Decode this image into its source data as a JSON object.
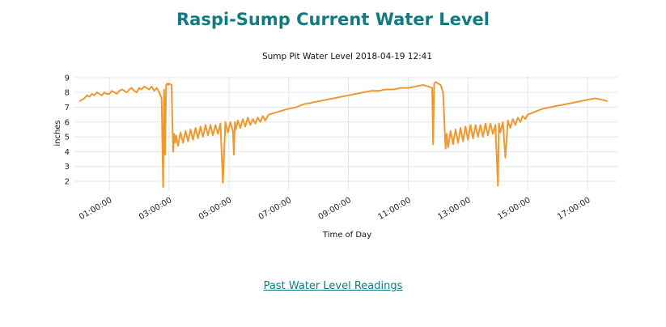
{
  "page": {
    "title": "Raspi-Sump Current Water Level",
    "past_link": "Past Water Level Readings"
  },
  "colors": {
    "line": "#f0982e",
    "title": "#137a7f",
    "grid": "#e6e6e6"
  },
  "chart_data": {
    "type": "line",
    "title": "Sump Pit Water Level 2018-04-19 12:41",
    "xlabel": "Time of Day",
    "ylabel": "inches",
    "xlim": [
      "23:50",
      "18:00"
    ],
    "ylim": [
      1.4,
      9.1
    ],
    "yticks": [
      2,
      3,
      4,
      5,
      6,
      7,
      8,
      9
    ],
    "xticks": [
      "01:00:00",
      "03:00:00",
      "05:00:00",
      "07:00:00",
      "09:00:00",
      "11:00:00",
      "13:00:00",
      "15:00:00",
      "17:00:00"
    ],
    "grid": true,
    "series": [
      {
        "x": [
          "00:00",
          "00:05",
          "00:10",
          "00:15",
          "00:20",
          "00:25",
          "00:30",
          "00:35",
          "00:40",
          "00:45",
          "00:50",
          "00:55",
          "01:00",
          "01:05",
          "01:10",
          "01:15",
          "01:20",
          "01:25",
          "01:30",
          "01:35",
          "01:40",
          "01:45",
          "01:50",
          "01:55",
          "02:00",
          "02:05",
          "02:10",
          "02:15",
          "02:20",
          "02:25",
          "02:30",
          "02:35",
          "02:40",
          "02:45",
          "02:48",
          "02:50",
          "02:52",
          "02:54",
          "02:56",
          "02:58",
          "03:00",
          "03:05",
          "03:08",
          "03:10",
          "03:12",
          "03:14",
          "03:18",
          "03:23",
          "03:28",
          "03:33",
          "03:38",
          "03:43",
          "03:48",
          "03:53",
          "03:58",
          "04:03",
          "04:08",
          "04:13",
          "04:18",
          "04:23",
          "04:28",
          "04:33",
          "04:38",
          "04:43",
          "04:48",
          "04:53",
          "04:58",
          "05:03",
          "05:08",
          "05:10",
          "05:12",
          "05:14",
          "05:18",
          "05:23",
          "05:28",
          "05:33",
          "05:38",
          "05:43",
          "05:48",
          "05:53",
          "05:58",
          "06:03",
          "06:08",
          "06:13",
          "06:20",
          "06:30",
          "06:40",
          "06:50",
          "07:00",
          "07:15",
          "07:30",
          "07:45",
          "08:00",
          "08:15",
          "08:30",
          "08:45",
          "09:00",
          "09:15",
          "09:30",
          "09:45",
          "10:00",
          "10:15",
          "10:30",
          "10:45",
          "11:00",
          "11:15",
          "11:30",
          "11:40",
          "11:48",
          "11:50",
          "11:52",
          "11:55",
          "12:00",
          "12:05",
          "12:10",
          "12:15",
          "12:17",
          "12:20",
          "12:25",
          "12:30",
          "12:35",
          "12:40",
          "12:45",
          "12:50",
          "12:55",
          "13:00",
          "13:05",
          "13:10",
          "13:15",
          "13:20",
          "13:25",
          "13:30",
          "13:35",
          "13:40",
          "13:45",
          "13:50",
          "13:55",
          "14:00",
          "14:02",
          "14:05",
          "14:10",
          "14:15",
          "14:20",
          "14:25",
          "14:30",
          "14:35",
          "14:40",
          "14:45",
          "14:50",
          "14:55",
          "15:00",
          "15:15",
          "15:30",
          "15:45",
          "16:00",
          "16:15",
          "16:30",
          "16:45",
          "17:00",
          "17:15",
          "17:30",
          "17:40"
        ],
        "values": [
          7.4,
          7.5,
          7.6,
          7.8,
          7.7,
          7.9,
          7.8,
          8.0,
          7.9,
          7.8,
          8.0,
          7.9,
          7.9,
          8.1,
          8.0,
          7.9,
          8.1,
          8.2,
          8.1,
          8.0,
          8.2,
          8.3,
          8.1,
          8.0,
          8.3,
          8.2,
          8.4,
          8.3,
          8.2,
          8.4,
          8.1,
          8.3,
          8.0,
          7.6,
          1.6,
          8.2,
          3.8,
          8.5,
          8.6,
          8.5,
          8.6,
          8.5,
          4.0,
          5.2,
          4.6,
          5.1,
          4.4,
          5.3,
          4.6,
          5.4,
          4.7,
          5.5,
          4.8,
          5.6,
          4.9,
          5.7,
          5.0,
          5.8,
          5.1,
          5.8,
          5.1,
          5.8,
          5.2,
          5.9,
          1.9,
          6.0,
          5.3,
          6.0,
          5.4,
          3.8,
          6.0,
          5.5,
          6.1,
          5.6,
          6.2,
          5.7,
          6.3,
          5.8,
          6.2,
          5.9,
          6.3,
          6.0,
          6.4,
          6.1,
          6.5,
          6.6,
          6.7,
          6.8,
          6.9,
          7.0,
          7.2,
          7.3,
          7.4,
          7.5,
          7.6,
          7.7,
          7.8,
          7.9,
          8.0,
          8.1,
          8.1,
          8.2,
          8.2,
          8.3,
          8.3,
          8.4,
          8.5,
          8.4,
          8.3,
          4.5,
          8.6,
          8.7,
          8.6,
          8.5,
          8.0,
          4.2,
          5.2,
          4.3,
          5.4,
          4.5,
          5.5,
          4.6,
          5.6,
          4.7,
          5.7,
          4.8,
          5.8,
          4.9,
          5.8,
          5.0,
          5.8,
          5.0,
          5.9,
          5.1,
          5.9,
          5.2,
          5.8,
          1.7,
          5.9,
          5.3,
          6.0,
          3.6,
          6.1,
          5.6,
          6.2,
          5.8,
          6.3,
          6.0,
          6.4,
          6.2,
          6.5,
          6.7,
          6.9,
          7.0,
          7.1,
          7.2,
          7.3,
          7.4,
          7.5,
          7.6,
          7.5,
          7.4
        ]
      }
    ]
  }
}
